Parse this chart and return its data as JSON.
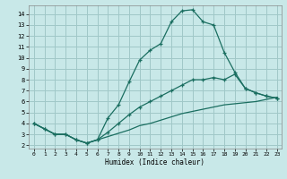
{
  "xlabel": "Humidex (Indice chaleur)",
  "bg_color": "#c8e8e8",
  "grid_color": "#a0c8c8",
  "line_color": "#1a6e60",
  "xlim_min": -0.5,
  "xlim_max": 23.4,
  "ylim_min": 1.7,
  "ylim_max": 14.8,
  "xticks": [
    0,
    1,
    2,
    3,
    4,
    5,
    6,
    7,
    8,
    9,
    10,
    11,
    12,
    13,
    14,
    15,
    16,
    17,
    18,
    19,
    20,
    21,
    22,
    23
  ],
  "yticks": [
    2,
    3,
    4,
    5,
    6,
    7,
    8,
    9,
    10,
    11,
    12,
    13,
    14
  ],
  "line1_x": [
    0,
    1,
    2,
    3,
    4,
    5,
    6,
    7,
    8,
    9,
    10,
    11,
    12,
    13,
    14,
    15,
    16,
    17,
    18,
    19,
    20,
    21,
    22,
    23
  ],
  "line1_y": [
    4.0,
    3.5,
    3.0,
    3.0,
    2.5,
    2.2,
    2.5,
    4.5,
    5.7,
    7.8,
    9.8,
    10.7,
    11.3,
    13.3,
    14.3,
    14.4,
    13.3,
    13.0,
    10.5,
    8.7,
    7.2,
    6.8,
    6.5,
    6.3
  ],
  "line2_x": [
    0,
    1,
    2,
    3,
    4,
    5,
    6,
    7,
    8,
    9,
    10,
    11,
    12,
    13,
    14,
    15,
    16,
    17,
    18,
    19,
    20,
    21,
    22,
    23
  ],
  "line2_y": [
    4.0,
    3.5,
    3.0,
    3.0,
    2.5,
    2.2,
    2.5,
    3.2,
    4.0,
    4.8,
    5.5,
    6.0,
    6.5,
    7.0,
    7.5,
    8.0,
    8.0,
    8.2,
    8.0,
    8.5,
    7.2,
    6.8,
    6.5,
    6.3
  ],
  "line3_x": [
    0,
    1,
    2,
    3,
    4,
    5,
    6,
    7,
    8,
    9,
    10,
    11,
    12,
    13,
    14,
    15,
    16,
    17,
    18,
    19,
    20,
    21,
    22,
    23
  ],
  "line3_y": [
    4.0,
    3.5,
    3.0,
    3.0,
    2.5,
    2.2,
    2.5,
    2.8,
    3.1,
    3.4,
    3.8,
    4.0,
    4.3,
    4.6,
    4.9,
    5.1,
    5.3,
    5.5,
    5.7,
    5.8,
    5.9,
    6.0,
    6.2,
    6.4
  ]
}
